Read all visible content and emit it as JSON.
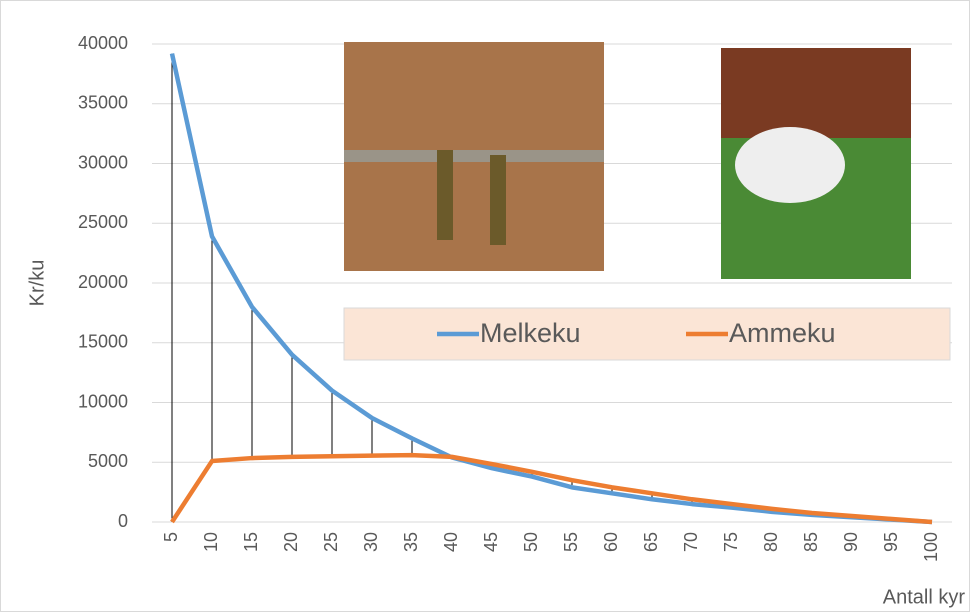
{
  "chart_data": {
    "type": "line",
    "y_label": "Kr/ku",
    "x_label": "Antall kyr",
    "categories": [
      "5",
      "10",
      "15",
      "20",
      "25",
      "30",
      "35",
      "40",
      "45",
      "50",
      "55",
      "60",
      "65",
      "70",
      "75",
      "80",
      "85",
      "90",
      "95",
      "100"
    ],
    "series": [
      {
        "name": "Melkeku",
        "color": "#5b9bd5",
        "values": [
          39200,
          23900,
          18000,
          14000,
          11000,
          8700,
          7000,
          5400,
          4500,
          3800,
          2900,
          2400,
          1900,
          1500,
          1200,
          850,
          600,
          400,
          200,
          0
        ]
      },
      {
        "name": "Ammeku",
        "color": "#ed7d31",
        "values": [
          0,
          5100,
          5350,
          5450,
          5500,
          5550,
          5600,
          5450,
          4850,
          4200,
          3500,
          2900,
          2400,
          1900,
          1500,
          1100,
          750,
          500,
          250,
          0
        ]
      }
    ],
    "ylim": [
      0,
      40000
    ],
    "yticks": [
      0,
      5000,
      10000,
      15000,
      20000,
      25000,
      30000,
      35000,
      40000
    ],
    "grid": true,
    "high_low_lines": true
  }
}
